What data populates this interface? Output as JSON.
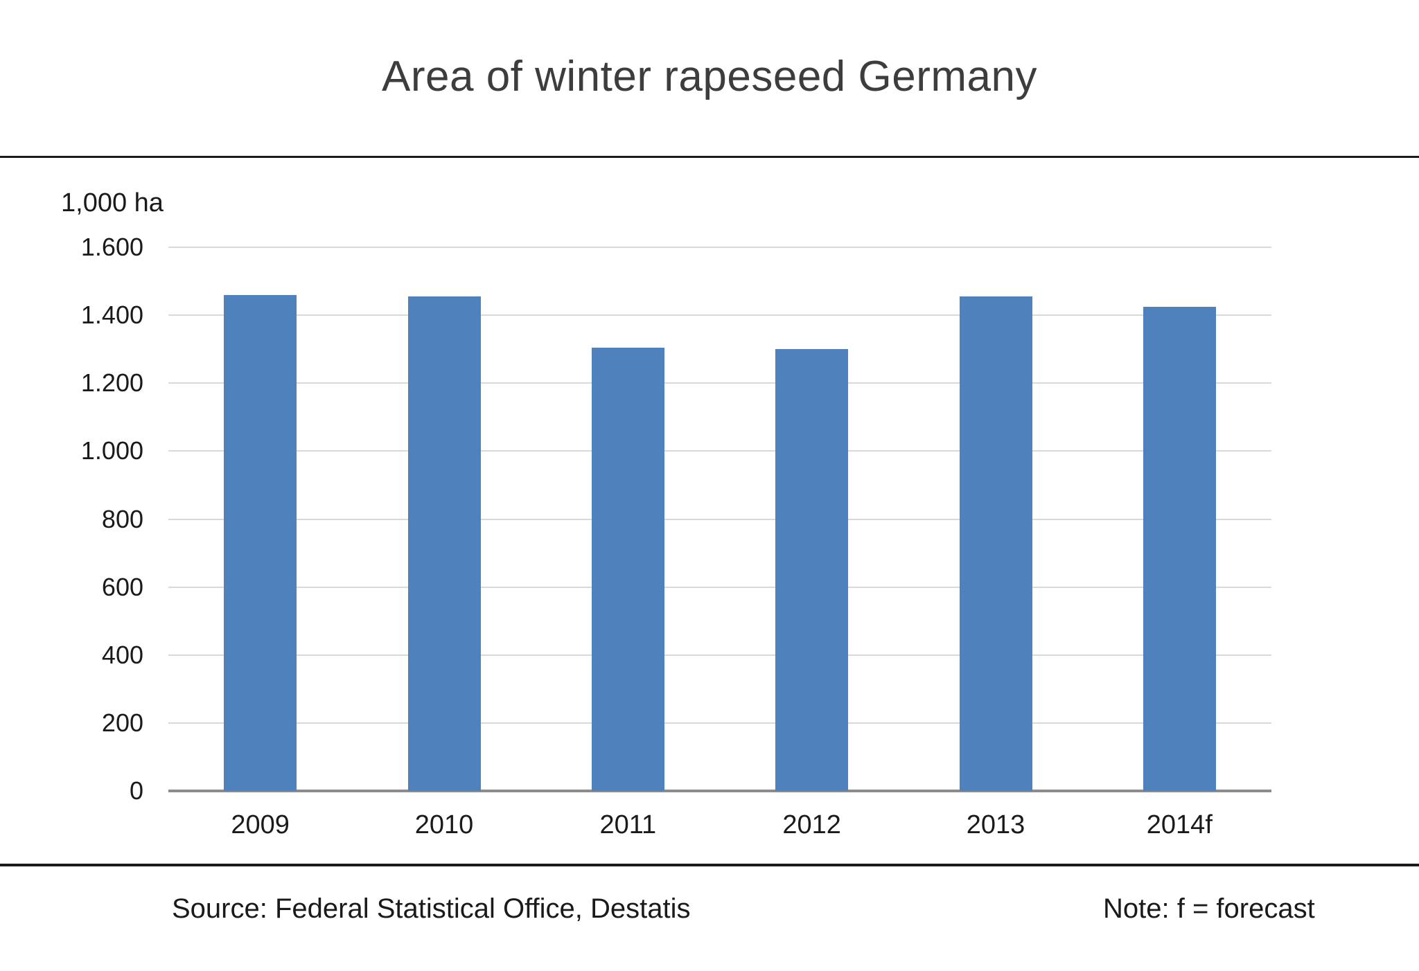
{
  "title": "Area of winter rapeseed Germany",
  "unit_label": "1,000 ha",
  "source": "Source: Federal Statistical Office, Destatis",
  "note": "Note: f = forecast",
  "colors": {
    "bar": "#4F81BD",
    "gridline": "#D9D9D9",
    "axis_line": "#8C8C8C",
    "title_text": "#3D3D3D",
    "text": "#1A1A1A",
    "rule": "#1A1A1A"
  },
  "chart_data": {
    "type": "bar",
    "title": "Area of winter rapeseed Germany",
    "categories": [
      "2009",
      "2010",
      "2011",
      "2012",
      "2013",
      "2014f"
    ],
    "values": [
      1460,
      1455,
      1305,
      1300,
      1455,
      1425
    ],
    "xlabel": "",
    "ylabel": "1,000 ha",
    "ylim": [
      0,
      1600
    ],
    "ytick_step": 200,
    "yticks": [
      {
        "value": 0,
        "label": "0"
      },
      {
        "value": 200,
        "label": "200"
      },
      {
        "value": 400,
        "label": "400"
      },
      {
        "value": 600,
        "label": "600"
      },
      {
        "value": 800,
        "label": "800"
      },
      {
        "value": 1000,
        "label": "1.000"
      },
      {
        "value": 1200,
        "label": "1.200"
      },
      {
        "value": 1400,
        "label": "1.400"
      },
      {
        "value": 1600,
        "label": "1.600"
      }
    ],
    "grid": true,
    "legend": false,
    "bar_color": "#4F81BD"
  }
}
